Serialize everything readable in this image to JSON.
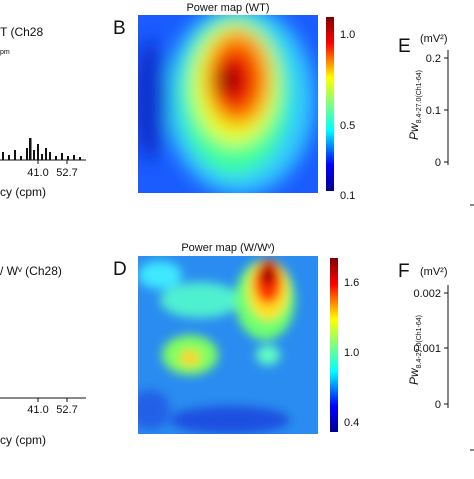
{
  "panels": [
    {
      "title": "T (Ch28",
      "subtitle": "pm",
      "x_tick_labels": [
        "41.0",
        "52.7"
      ],
      "x_label": "cy (cpm)"
    },
    {
      "label": "B",
      "title": "Power map (WT)",
      "colorbar_ticks": [
        "1.0",
        "0.5",
        "0.1"
      ]
    },
    {
      "title": "/ Wᵛ (Ch28)",
      "x_tick_labels": [
        "41.0",
        "52.7"
      ],
      "x_label": "cy (cpm)"
    },
    {
      "label": "D",
      "title": "Power map (W/Wᵛ)",
      "colorbar_ticks": [
        "1.6",
        "1.0",
        "0.4"
      ]
    },
    {
      "label": "E",
      "unit": "(mV²)",
      "y_tick_labels": [
        "0.2",
        "0.1",
        "0"
      ],
      "y_label": "Pw",
      "y_label_sub": "8.4-27.0(Ch1-64)"
    },
    {
      "label": "F",
      "unit": "(mV²)",
      "y_tick_labels": [
        "0.002",
        "0.001",
        "0"
      ],
      "y_label": "Pw",
      "y_label_sub": "8.4-27.0(Ch1-64)"
    }
  ]
}
